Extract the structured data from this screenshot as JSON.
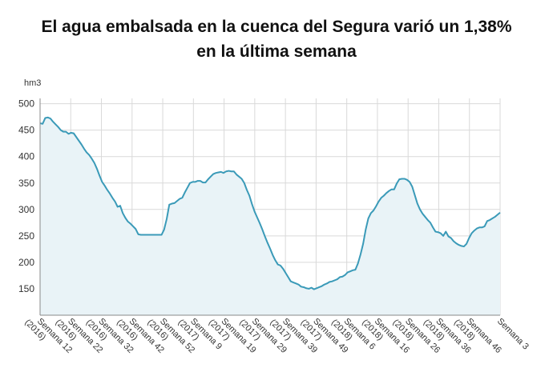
{
  "chart_data": {
    "type": "area",
    "title_line1": "El agua embalsada en la cuenca del Segura varió un 1,38%",
    "title_line2": "en la última semana",
    "ylabel": "hm3",
    "ylim": [
      100,
      510
    ],
    "yticks": [
      150,
      200,
      250,
      300,
      350,
      400,
      450,
      500
    ],
    "grid": true,
    "legend": "none",
    "colors": {
      "line": "#3a9ab8",
      "fill": "#e9f3f7",
      "grid": "#d9d9d9",
      "axis": "#888888"
    },
    "x_tick_labels": [
      [
        "Semana 12",
        "(2016)"
      ],
      [
        "Semana 22",
        "(2016)"
      ],
      [
        "Semana 32",
        "(2016)"
      ],
      [
        "Semana 42",
        "(2016)"
      ],
      [
        "Semana 52",
        "(2016)"
      ],
      [
        "Semana 9",
        "(2017)"
      ],
      [
        "Semana 19",
        "(2017)"
      ],
      [
        "Semana 29",
        "(2017)"
      ],
      [
        "Semana 39",
        "(2017)"
      ],
      [
        "Semana 49",
        "(2017)"
      ],
      [
        "Semana 6",
        "(2018)"
      ],
      [
        "Semana 16",
        "(2018)"
      ],
      [
        "Semana 26",
        "(2018)"
      ],
      [
        "Semana 36",
        "(2018)"
      ],
      [
        "Semana 46",
        "(2018)"
      ],
      [
        "Semana 3",
        ""
      ]
    ],
    "series": [
      {
        "values": [
          463,
          462,
          473,
          474,
          472,
          466,
          461,
          456,
          450,
          447,
          447,
          443,
          445,
          444,
          437,
          430,
          423,
          415,
          408,
          403,
          396,
          388,
          377,
          364,
          352,
          345,
          337,
          330,
          322,
          315,
          305,
          307,
          293,
          284,
          277,
          273,
          268,
          263,
          253,
          252,
          252,
          252,
          252,
          252,
          252,
          252,
          252,
          252,
          262,
          282,
          309,
          311,
          312,
          316,
          320,
          322,
          332,
          341,
          350,
          352,
          352,
          354,
          354,
          351,
          351,
          357,
          362,
          367,
          369,
          370,
          371,
          369,
          372,
          373,
          372,
          372,
          366,
          362,
          358,
          350,
          337,
          326,
          310,
          296,
          285,
          274,
          262,
          249,
          237,
          226,
          214,
          204,
          196,
          194,
          188,
          180,
          172,
          164,
          162,
          160,
          158,
          154,
          153,
          151,
          150,
          152,
          149,
          151,
          153,
          155,
          158,
          160,
          163,
          164,
          166,
          168,
          172,
          173,
          176,
          181,
          183,
          185,
          186,
          198,
          215,
          235,
          262,
          283,
          293,
          298,
          306,
          315,
          322,
          326,
          331,
          335,
          338,
          338,
          349,
          357,
          358,
          358,
          356,
          352,
          343,
          327,
          311,
          300,
          292,
          286,
          280,
          275,
          266,
          258,
          257,
          255,
          250,
          258,
          249,
          246,
          240,
          236,
          233,
          231,
          230,
          235,
          246,
          255,
          260,
          264,
          266,
          266,
          268,
          278,
          280,
          283,
          286,
          290,
          294
        ]
      }
    ]
  }
}
